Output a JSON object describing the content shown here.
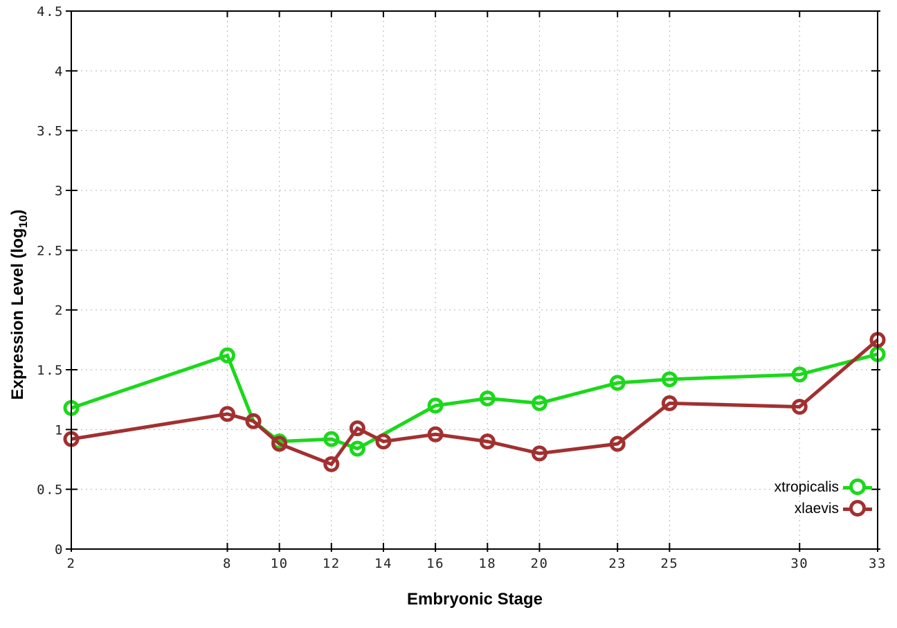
{
  "labels": {
    "xlabel": "Embryonic Stage",
    "ylabel_prefix": "Expression Level (log",
    "ylabel_sub": "10",
    "ylabel_suffix": ")"
  },
  "legend": {
    "position": "bottom-right-inside",
    "items": [
      {
        "label": "xtropicalis",
        "color": "#1bd81b"
      },
      {
        "label": "xlaevis",
        "color": "#a23030"
      }
    ]
  },
  "chart_data": {
    "type": "line",
    "title": "",
    "xlabel": "Embryonic Stage",
    "ylabel": "Expression Level (log10)",
    "xlim": [
      2,
      33
    ],
    "ylim": [
      0,
      4.5
    ],
    "xticks": [
      2,
      8,
      10,
      12,
      14,
      16,
      18,
      20,
      23,
      25,
      30,
      33
    ],
    "yticks": [
      0,
      0.5,
      1,
      1.5,
      2,
      2.5,
      3,
      3.5,
      4,
      4.5
    ],
    "grid": true,
    "marker": "open-circle",
    "series": [
      {
        "name": "xtropicalis",
        "color": "#1bd81b",
        "points": [
          [
            2,
            1.18
          ],
          [
            8,
            1.62
          ],
          [
            9,
            1.07
          ],
          [
            10,
            0.9
          ],
          [
            12,
            0.92
          ],
          [
            13,
            0.84
          ],
          [
            16,
            1.2
          ],
          [
            18,
            1.26
          ],
          [
            20,
            1.22
          ],
          [
            23,
            1.39
          ],
          [
            25,
            1.42
          ],
          [
            30,
            1.46
          ],
          [
            33,
            1.63
          ]
        ]
      },
      {
        "name": "xlaevis",
        "color": "#a23030",
        "points": [
          [
            2,
            0.92
          ],
          [
            8,
            1.13
          ],
          [
            9,
            1.07
          ],
          [
            10,
            0.88
          ],
          [
            12,
            0.71
          ],
          [
            13,
            1.01
          ],
          [
            14,
            0.9
          ],
          [
            16,
            0.96
          ],
          [
            18,
            0.9
          ],
          [
            20,
            0.8
          ],
          [
            23,
            0.88
          ],
          [
            25,
            1.22
          ],
          [
            30,
            1.19
          ],
          [
            33,
            1.75
          ]
        ]
      }
    ]
  }
}
